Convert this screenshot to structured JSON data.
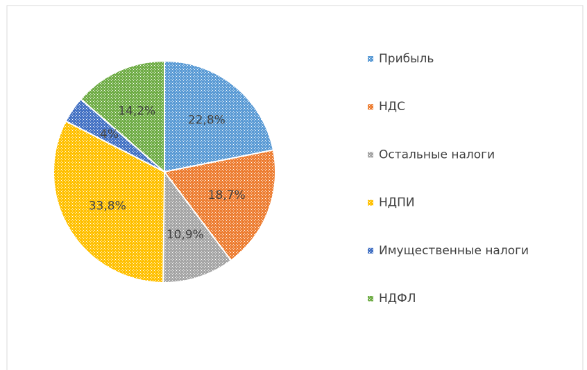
{
  "chart_data": {
    "type": "pie",
    "categories": [
      "Прибыль",
      "НДС",
      "Остальные налоги",
      "НДПИ",
      "Имущественные налоги",
      "НДФЛ"
    ],
    "values": [
      22.8,
      18.7,
      10.9,
      33.8,
      4,
      14.2
    ],
    "value_labels": [
      "22,8%",
      "18,7%",
      "10,9%",
      "33,8%",
      "4%",
      "14,2%"
    ],
    "colors": [
      "#5b9bd5",
      "#ed7d31",
      "#a5a5a5",
      "#ffc000",
      "#4472c4",
      "#70ad47"
    ],
    "legend": "right"
  }
}
